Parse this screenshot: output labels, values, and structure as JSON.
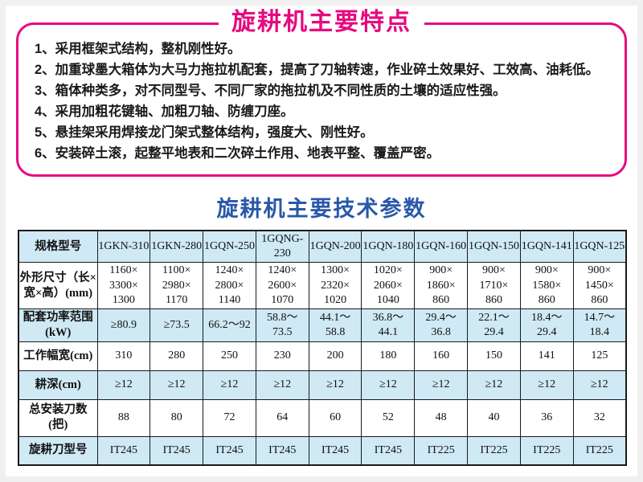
{
  "features": {
    "title": "旋耕机主要特点",
    "items": [
      "1、采用框架式结构，整机刚性好。",
      "2、加重球墨大箱体为大马力拖拉机配套，提高了刀轴转速，作业碎土效果好、工效高、油耗低。",
      "3、箱体种类多，对不同型号、不同厂家的拖拉机及不同性质的土壤的适应性强。",
      "4、采用加粗花键轴、加粗刀轴、防缠刀座。",
      "5、悬挂架采用焊接龙门架式整体结构，强度大、刚性好。",
      "6、安装碎土滚，起整平地表和二次碎土作用、地表平整、覆盖严密。"
    ]
  },
  "params": {
    "title": "旋耕机主要技术参数",
    "table": {
      "spec_label": "规格型号",
      "models": [
        "1GKN-310",
        "1GKN-280",
        "1GQN-250",
        "1GQNG-230",
        "1GQN-200",
        "1GQN-180",
        "1GQN-160",
        "1GQN-150",
        "1GQN-141",
        "1GQN-125"
      ],
      "rows": [
        {
          "label": "外形尺寸（长×\n宽×高）(mm)",
          "shaded": false,
          "values": [
            "1160×\n3300×\n1300",
            "1100×\n2980×\n1170",
            "1240×\n2800×\n1140",
            "1240×\n2600×\n1070",
            "1300×\n2320×\n1020",
            "1020×\n2060×\n1040",
            "900×\n1860×\n860",
            "900×\n1710×\n860",
            "900×\n1580×\n860",
            "900×\n1450×\n860"
          ]
        },
        {
          "label": "配套功率范围\n(kW)",
          "shaded": true,
          "values": [
            "≥80.9",
            "≥73.5",
            "66.2～92",
            "58.8～\n73.5",
            "44.1～\n58.8",
            "36.8～\n44.1",
            "29.4～\n36.8",
            "22.1～\n29.4",
            "18.4～\n29.4",
            "14.7～\n18.4"
          ]
        },
        {
          "label": "工作幅宽(cm)",
          "shaded": false,
          "values": [
            "310",
            "280",
            "250",
            "230",
            "200",
            "180",
            "160",
            "150",
            "141",
            "125"
          ]
        },
        {
          "label": "耕深(cm)",
          "shaded": true,
          "values": [
            "≥12",
            "≥12",
            "≥12",
            "≥12",
            "≥12",
            "≥12",
            "≥12",
            "≥12",
            "≥12",
            "≥12"
          ]
        },
        {
          "label": "总安装刀数\n(把)",
          "shaded": false,
          "values": [
            "88",
            "80",
            "72",
            "64",
            "60",
            "52",
            "48",
            "40",
            "36",
            "32"
          ]
        },
        {
          "label": "旋耕刀型号",
          "shaded": true,
          "values": [
            "IT245",
            "IT245",
            "IT245",
            "IT245",
            "IT245",
            "IT245",
            "IT225",
            "IT225",
            "IT225",
            "IT225"
          ]
        }
      ]
    }
  },
  "colors": {
    "accent_magenta": "#e60980",
    "accent_blue": "#2a58a9",
    "cell_blue": "#cfe9f5",
    "table_border": "#1a1a1a"
  }
}
